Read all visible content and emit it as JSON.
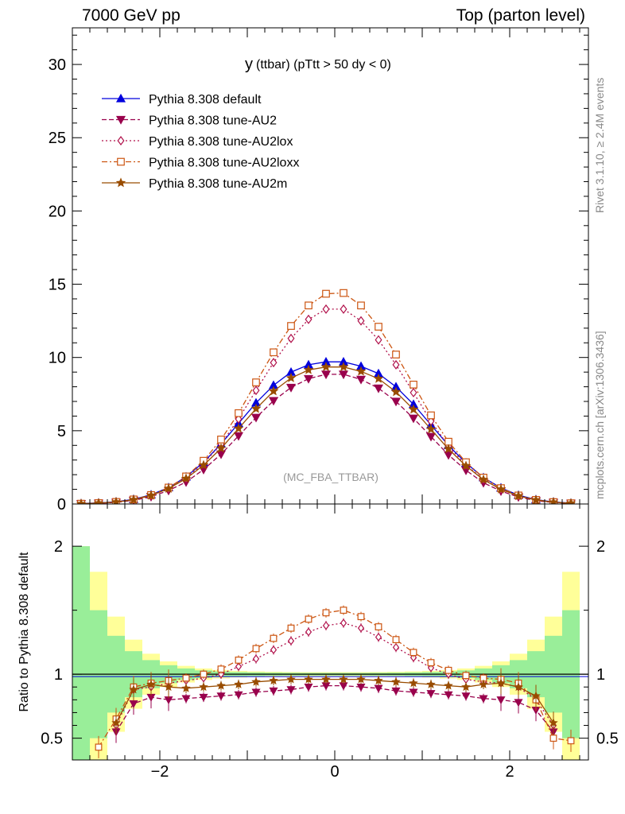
{
  "header": {
    "left": "7000 GeV pp",
    "right": "Top (parton level)"
  },
  "side_labels": {
    "rivet": "Rivet 3.1.10, ≥ 2.4M events",
    "mcplots": "mcplots.cern.ch [arXiv:1306.3436]"
  },
  "chart_data": [
    {
      "type": "line",
      "title": "y",
      "title_suffix": "(ttbar) (pTtt > 50 dy < 0)",
      "watermark": "(MC_FBA_TTBAR)",
      "xlim": [
        -3.0,
        2.9
      ],
      "ylim": [
        0,
        32.5
      ],
      "yticks": [
        0,
        5,
        10,
        15,
        20,
        25,
        30
      ],
      "legend_position": "top-left",
      "series": [
        {
          "name": "Pythia 8.308 default",
          "color": "#0000dd",
          "marker": "triangle-up",
          "dash": "solid",
          "fill": true,
          "x": [
            -2.9,
            -2.7,
            -2.5,
            -2.3,
            -2.1,
            -1.9,
            -1.7,
            -1.5,
            -1.3,
            -1.1,
            -0.9,
            -0.7,
            -0.5,
            -0.3,
            -0.1,
            0.1,
            0.3,
            0.5,
            0.7,
            0.9,
            1.1,
            1.3,
            1.5,
            1.7,
            1.9,
            2.1,
            2.3,
            2.5,
            2.7
          ],
          "y": [
            0.03,
            0.07,
            0.15,
            0.32,
            0.63,
            1.12,
            1.85,
            2.85,
            4.1,
            5.5,
            6.9,
            8.1,
            9.0,
            9.5,
            9.7,
            9.7,
            9.4,
            8.9,
            8.0,
            6.8,
            5.4,
            4.0,
            2.8,
            1.8,
            1.1,
            0.6,
            0.3,
            0.14,
            0.06
          ]
        },
        {
          "name": "Pythia 8.308 tune-AU2",
          "color": "#99004c",
          "marker": "triangle-down",
          "dash": "6,3",
          "fill": true,
          "x": [
            -2.9,
            -2.7,
            -2.5,
            -2.3,
            -2.1,
            -1.9,
            -1.7,
            -1.5,
            -1.3,
            -1.1,
            -0.9,
            -0.7,
            -0.5,
            -0.3,
            -0.1,
            0.1,
            0.3,
            0.5,
            0.7,
            0.9,
            1.1,
            1.3,
            1.5,
            1.7,
            1.9,
            2.1,
            2.3,
            2.5,
            2.7
          ],
          "y": [
            0.02,
            0.05,
            0.11,
            0.25,
            0.5,
            0.92,
            1.5,
            2.35,
            3.4,
            4.65,
            5.9,
            7.05,
            7.95,
            8.55,
            8.85,
            8.85,
            8.5,
            7.9,
            7.0,
            5.85,
            4.6,
            3.35,
            2.3,
            1.45,
            0.88,
            0.48,
            0.23,
            0.1,
            0.04
          ]
        },
        {
          "name": "Pythia 8.308 tune-AU2lox",
          "color": "#b0104a",
          "marker": "diamond",
          "dash": "2,3",
          "fill": false,
          "x": [
            -2.9,
            -2.7,
            -2.5,
            -2.3,
            -2.1,
            -1.9,
            -1.7,
            -1.5,
            -1.3,
            -1.1,
            -0.9,
            -0.7,
            -0.5,
            -0.3,
            -0.1,
            0.1,
            0.3,
            0.5,
            0.7,
            0.9,
            1.1,
            1.3,
            1.5,
            1.7,
            1.9,
            2.1,
            2.3,
            2.5,
            2.7
          ],
          "y": [
            0.02,
            0.06,
            0.13,
            0.29,
            0.57,
            1.05,
            1.75,
            2.75,
            4.1,
            5.8,
            7.75,
            9.65,
            11.3,
            12.6,
            13.3,
            13.3,
            12.5,
            11.2,
            9.5,
            7.6,
            5.65,
            3.95,
            2.65,
            1.68,
            1.0,
            0.55,
            0.26,
            0.12,
            0.05
          ]
        },
        {
          "name": "Pythia 8.308 tune-AU2loxx",
          "color": "#cc5511",
          "marker": "square",
          "dash": "7,3,2,3",
          "fill": false,
          "x": [
            -2.9,
            -2.7,
            -2.5,
            -2.3,
            -2.1,
            -1.9,
            -1.7,
            -1.5,
            -1.3,
            -1.1,
            -0.9,
            -0.7,
            -0.5,
            -0.3,
            -0.1,
            0.1,
            0.3,
            0.5,
            0.7,
            0.9,
            1.1,
            1.3,
            1.5,
            1.7,
            1.9,
            2.1,
            2.3,
            2.5,
            2.7
          ],
          "y": [
            0.02,
            0.06,
            0.14,
            0.31,
            0.61,
            1.12,
            1.88,
            2.95,
            4.4,
            6.2,
            8.3,
            10.35,
            12.15,
            13.55,
            14.35,
            14.4,
            13.55,
            12.1,
            10.2,
            8.15,
            6.05,
            4.25,
            2.85,
            1.8,
            1.08,
            0.58,
            0.28,
            0.13,
            0.05
          ]
        },
        {
          "name": "Pythia 8.308 tune-AU2m",
          "color": "#994c00",
          "marker": "star",
          "dash": "solid",
          "fill": true,
          "x": [
            -2.9,
            -2.7,
            -2.5,
            -2.3,
            -2.1,
            -1.9,
            -1.7,
            -1.5,
            -1.3,
            -1.1,
            -0.9,
            -0.7,
            -0.5,
            -0.3,
            -0.1,
            0.1,
            0.3,
            0.5,
            0.7,
            0.9,
            1.1,
            1.3,
            1.5,
            1.7,
            1.9,
            2.1,
            2.3,
            2.5,
            2.7
          ],
          "y": [
            0.02,
            0.06,
            0.13,
            0.29,
            0.58,
            1.05,
            1.73,
            2.65,
            3.8,
            5.15,
            6.5,
            7.7,
            8.6,
            9.15,
            9.35,
            9.35,
            9.05,
            8.55,
            7.65,
            6.45,
            5.1,
            3.75,
            2.6,
            1.66,
            1.0,
            0.55,
            0.27,
            0.12,
            0.05
          ]
        }
      ]
    },
    {
      "type": "line",
      "ylabel": "Ratio to Pythia 8.308 default",
      "xlim": [
        -3.0,
        2.9
      ],
      "ylim": [
        0.33,
        2.33
      ],
      "yticks": [
        0.5,
        1,
        2
      ],
      "xticks": [
        -2,
        0,
        2
      ],
      "reference": 1,
      "bands": {
        "x": [
          -2.9,
          -2.7,
          -2.5,
          -2.3,
          -2.1,
          -1.9,
          -1.7,
          -1.5,
          -1.3,
          -1.1,
          -0.9,
          -0.7,
          -0.5,
          -0.3,
          -0.1,
          0.1,
          0.3,
          0.5,
          0.7,
          0.9,
          1.1,
          1.3,
          1.5,
          1.7,
          1.9,
          2.1,
          2.3,
          2.5,
          2.7
        ],
        "stat": [
          1.0,
          0.5,
          0.3,
          0.18,
          0.11,
          0.07,
          0.045,
          0.03,
          0.022,
          0.017,
          0.014,
          0.012,
          0.011,
          0.01,
          0.01,
          0.01,
          0.01,
          0.011,
          0.012,
          0.014,
          0.017,
          0.022,
          0.03,
          0.045,
          0.07,
          0.11,
          0.18,
          0.3,
          0.5
        ],
        "total": [
          1.0,
          0.8,
          0.45,
          0.27,
          0.16,
          0.1,
          0.065,
          0.045,
          0.033,
          0.026,
          0.022,
          0.019,
          0.017,
          0.016,
          0.016,
          0.016,
          0.016,
          0.017,
          0.019,
          0.022,
          0.026,
          0.033,
          0.045,
          0.065,
          0.1,
          0.16,
          0.27,
          0.45,
          0.8
        ],
        "stat_color": "#99ee99",
        "total_color": "#ffff99"
      },
      "series": [
        {
          "name": "Pythia 8.308 tune-AU2",
          "color": "#99004c",
          "x": [
            -2.5,
            -2.3,
            -2.1,
            -1.9,
            -1.7,
            -1.5,
            -1.3,
            -1.1,
            -0.9,
            -0.7,
            -0.5,
            -0.3,
            -0.1,
            0.1,
            0.3,
            0.5,
            0.7,
            0.9,
            1.1,
            1.3,
            1.5,
            1.7,
            1.9,
            2.1,
            2.3,
            2.5
          ],
          "y": [
            0.55,
            0.77,
            0.82,
            0.8,
            0.81,
            0.82,
            0.83,
            0.84,
            0.86,
            0.87,
            0.88,
            0.9,
            0.91,
            0.91,
            0.9,
            0.89,
            0.87,
            0.86,
            0.85,
            0.84,
            0.83,
            0.81,
            0.8,
            0.78,
            0.72,
            0.55
          ]
        },
        {
          "name": "Pythia 8.308 tune-AU2lox",
          "color": "#b0104a",
          "x": [
            -2.5,
            -2.3,
            -2.1,
            -1.9,
            -1.7,
            -1.5,
            -1.3,
            -1.1,
            -0.9,
            -0.7,
            -0.5,
            -0.3,
            -0.1,
            0.1,
            0.3,
            0.5,
            0.7,
            0.9,
            1.1,
            1.3,
            1.5,
            1.7,
            1.9,
            2.1,
            2.3,
            2.5
          ],
          "y": [
            0.6,
            0.88,
            0.9,
            0.93,
            0.95,
            0.97,
            1.0,
            1.06,
            1.12,
            1.19,
            1.26,
            1.33,
            1.38,
            1.4,
            1.36,
            1.29,
            1.21,
            1.13,
            1.05,
            1.0,
            0.96,
            0.94,
            0.93,
            0.9,
            0.8,
            0.6
          ]
        },
        {
          "name": "Pythia 8.308 tune-AU2loxx",
          "color": "#cc5511",
          "x": [
            -2.7,
            -2.5,
            -2.3,
            -2.1,
            -1.9,
            -1.7,
            -1.5,
            -1.3,
            -1.1,
            -0.9,
            -0.7,
            -0.5,
            -0.3,
            -0.1,
            0.1,
            0.3,
            0.5,
            0.7,
            0.9,
            1.1,
            1.3,
            1.5,
            1.7,
            1.9,
            2.1,
            2.3,
            2.5,
            2.7
          ],
          "y": [
            0.43,
            0.65,
            0.9,
            0.93,
            0.95,
            0.97,
            1.0,
            1.04,
            1.11,
            1.2,
            1.28,
            1.36,
            1.43,
            1.48,
            1.5,
            1.45,
            1.37,
            1.27,
            1.17,
            1.09,
            1.03,
            0.99,
            0.97,
            0.96,
            0.93,
            0.8,
            0.5,
            0.48
          ]
        },
        {
          "name": "Pythia 8.308 tune-AU2m",
          "color": "#994c00",
          "x": [
            -2.5,
            -2.3,
            -2.1,
            -1.9,
            -1.7,
            -1.5,
            -1.3,
            -1.1,
            -0.9,
            -0.7,
            -0.5,
            -0.3,
            -0.1,
            0.1,
            0.3,
            0.5,
            0.7,
            0.9,
            1.1,
            1.3,
            1.5,
            1.7,
            1.9,
            2.1,
            2.3,
            2.5
          ],
          "y": [
            0.62,
            0.88,
            0.92,
            0.9,
            0.89,
            0.9,
            0.91,
            0.92,
            0.94,
            0.95,
            0.96,
            0.96,
            0.96,
            0.96,
            0.96,
            0.95,
            0.94,
            0.93,
            0.92,
            0.91,
            0.9,
            0.92,
            0.93,
            0.9,
            0.83,
            0.62
          ]
        }
      ]
    }
  ]
}
